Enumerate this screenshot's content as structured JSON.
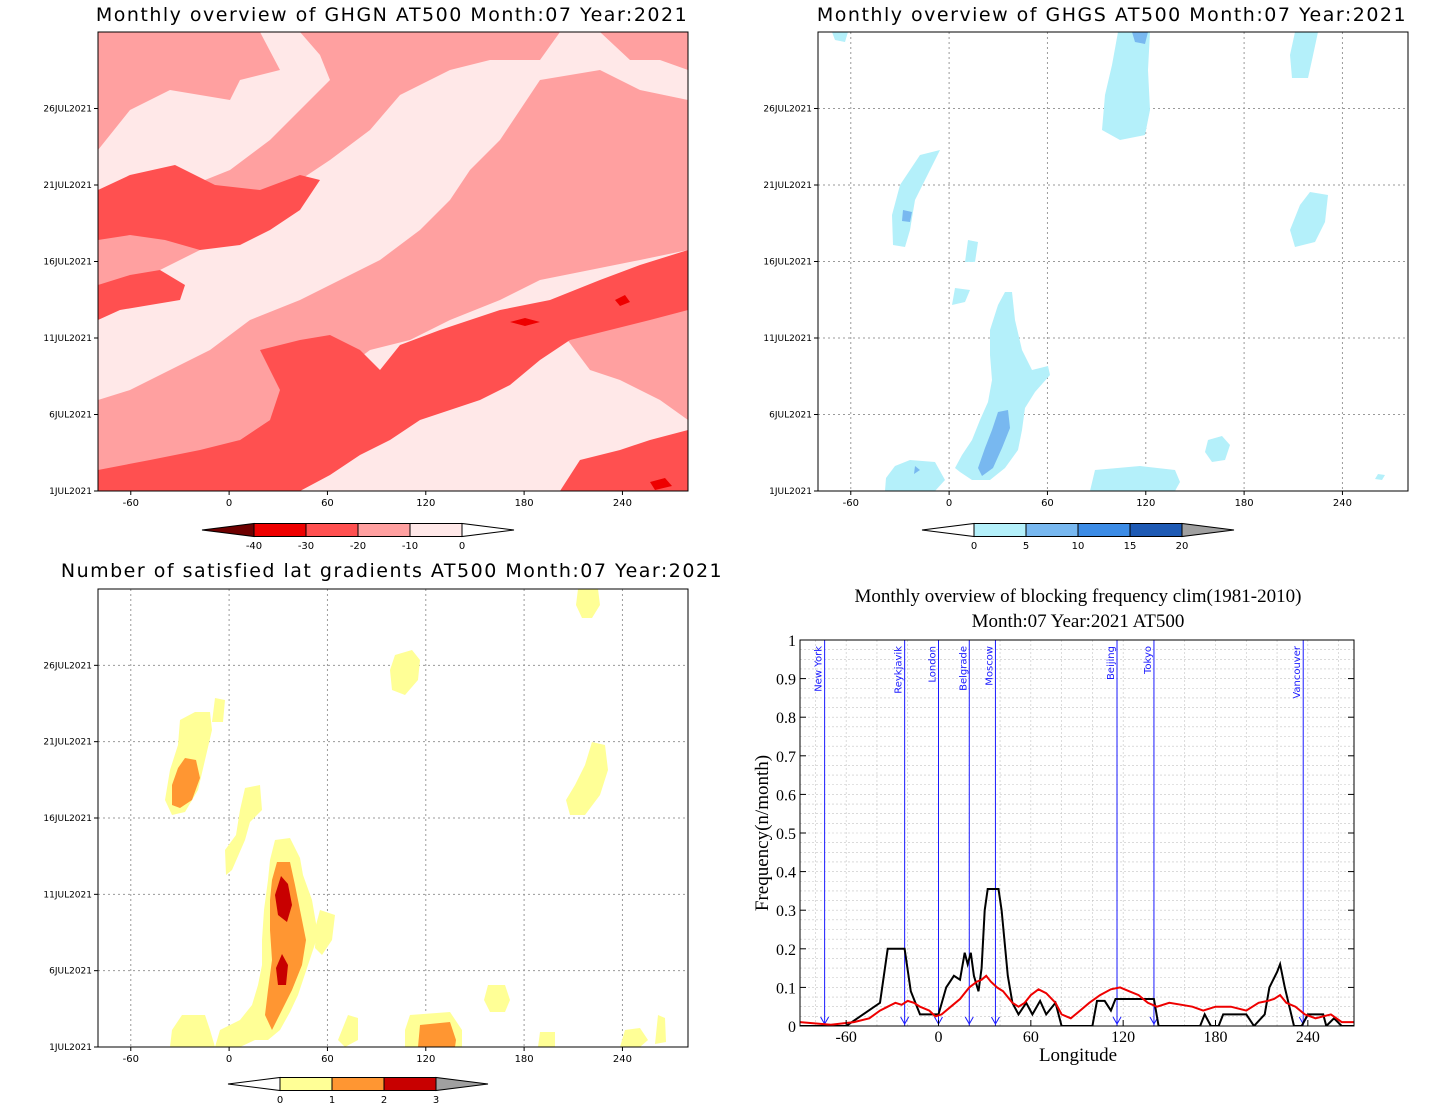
{
  "chart_data": [
    {
      "type": "heatmap",
      "id": "ghgn",
      "title": "Monthly overview of GHGN AT500 Month:07 Year:2021",
      "x_ticks": [
        "-60",
        "0",
        "60",
        "120",
        "180",
        "240"
      ],
      "y_ticks": [
        "1JUL2021",
        "6JUL2021",
        "11JUL2021",
        "16JUL2021",
        "21JUL2021",
        "26JUL2021"
      ],
      "colorbar": {
        "labels": [
          "-40",
          "-30",
          "-20",
          "-10",
          "0"
        ],
        "colors": [
          "#6e0000",
          "#ee0000",
          "#ff5050",
          "#ffa0a0",
          "#ffe8e8"
        ]
      }
    },
    {
      "type": "heatmap",
      "id": "ghgs",
      "title": "Monthly overview of GHGS AT500 Month:07 Year:2021",
      "x_ticks": [
        "-60",
        "0",
        "60",
        "120",
        "180",
        "240"
      ],
      "y_ticks": [
        "1JUL2021",
        "6JUL2021",
        "11JUL2021",
        "16JUL2021",
        "21JUL2021",
        "26JUL2021"
      ],
      "colorbar": {
        "labels": [
          "0",
          "5",
          "10",
          "15",
          "20"
        ],
        "colors": [
          "#b4f0fa",
          "#78b8f0",
          "#3c8ce6",
          "#1e5ab4",
          "#a0a0a0"
        ]
      }
    },
    {
      "type": "heatmap",
      "id": "gradients",
      "title": "Number of satisfied lat gradients AT500 Month:07 Year:2021",
      "x_ticks": [
        "-60",
        "0",
        "60",
        "120",
        "180",
        "240"
      ],
      "y_ticks": [
        "1JUL2021",
        "6JUL2021",
        "11JUL2021",
        "16JUL2021",
        "21JUL2021",
        "26JUL2021"
      ],
      "colorbar": {
        "labels": [
          "0",
          "1",
          "2",
          "3"
        ],
        "colors": [
          "#ffff96",
          "#ff9632",
          "#c80000",
          "#a0a0a0"
        ]
      }
    },
    {
      "type": "line",
      "id": "blocking",
      "title": "Monthly overview of blocking frequency clim(1981-2010)",
      "subtitle": "Month:07 Year:2021  AT500",
      "xlabel": "Longitude",
      "ylabel": "Frequency(n/month)",
      "xlim": [
        -90,
        270
      ],
      "ylim": [
        0,
        1
      ],
      "x_ticks": [
        "-60",
        "0",
        "60",
        "120",
        "180",
        "240"
      ],
      "y_ticks": [
        "0",
        "0.1",
        "0.2",
        "0.3",
        "0.4",
        "0.5",
        "0.6",
        "0.7",
        "0.8",
        "0.9",
        "1"
      ],
      "cities": [
        {
          "name": "New York",
          "lon": -74
        },
        {
          "name": "Reykjavik",
          "lon": -22
        },
        {
          "name": "London",
          "lon": 0
        },
        {
          "name": "Belgrade",
          "lon": 20
        },
        {
          "name": "Moscow",
          "lon": 37
        },
        {
          "name": "Beijing",
          "lon": 116
        },
        {
          "name": "Tokyo",
          "lon": 140
        },
        {
          "name": "Vancouver",
          "lon": 237
        }
      ],
      "series": [
        {
          "color": "#000000",
          "points": [
            [
              -90,
              0
            ],
            [
              -60,
              0
            ],
            [
              -38,
              0.06
            ],
            [
              -33,
              0.2
            ],
            [
              -22,
              0.2
            ],
            [
              -18,
              0.09
            ],
            [
              -12,
              0.03
            ],
            [
              -6,
              0.03
            ],
            [
              0,
              0.03
            ],
            [
              5,
              0.1
            ],
            [
              10,
              0.13
            ],
            [
              14,
              0.12
            ],
            [
              17,
              0.19
            ],
            [
              19,
              0.16
            ],
            [
              21,
              0.19
            ],
            [
              23,
              0.13
            ],
            [
              26,
              0.09
            ],
            [
              28,
              0.15
            ],
            [
              30,
              0.3
            ],
            [
              32,
              0.355
            ],
            [
              39,
              0.355
            ],
            [
              41,
              0.3
            ],
            [
              45,
              0.13
            ],
            [
              48,
              0.06
            ],
            [
              52,
              0.03
            ],
            [
              57,
              0.06
            ],
            [
              61,
              0.03
            ],
            [
              66,
              0.065
            ],
            [
              70,
              0.03
            ],
            [
              76,
              0.06
            ],
            [
              80,
              0
            ],
            [
              100,
              0
            ],
            [
              103,
              0.065
            ],
            [
              108,
              0.065
            ],
            [
              112,
              0.04
            ],
            [
              115,
              0.07
            ],
            [
              140,
              0.07
            ],
            [
              143,
              0
            ],
            [
              170,
              0
            ],
            [
              173,
              0.03
            ],
            [
              177,
              0
            ],
            [
              182,
              0
            ],
            [
              185,
              0.03
            ],
            [
              200,
              0.03
            ],
            [
              205,
              0
            ],
            [
              212,
              0.03
            ],
            [
              215,
              0.1
            ],
            [
              220,
              0.14
            ],
            [
              222,
              0.16
            ],
            [
              225,
              0.1
            ],
            [
              228,
              0.05
            ],
            [
              231,
              0
            ],
            [
              236,
              0
            ],
            [
              240,
              0.03
            ],
            [
              250,
              0.03
            ],
            [
              252,
              0
            ],
            [
              257,
              0.02
            ],
            [
              262,
              0
            ],
            [
              270,
              0
            ]
          ]
        },
        {
          "color": "#ee0000",
          "points": [
            [
              -90,
              0.01
            ],
            [
              -70,
              0.003
            ],
            [
              -55,
              0.01
            ],
            [
              -45,
              0.02
            ],
            [
              -38,
              0.04
            ],
            [
              -33,
              0.05
            ],
            [
              -28,
              0.06
            ],
            [
              -24,
              0.055
            ],
            [
              -20,
              0.065
            ],
            [
              -16,
              0.06
            ],
            [
              -12,
              0.05
            ],
            [
              -6,
              0.04
            ],
            [
              -2,
              0.025
            ],
            [
              2,
              0.03
            ],
            [
              8,
              0.05
            ],
            [
              14,
              0.07
            ],
            [
              20,
              0.1
            ],
            [
              25,
              0.115
            ],
            [
              28,
              0.12
            ],
            [
              31,
              0.13
            ],
            [
              34,
              0.115
            ],
            [
              38,
              0.1
            ],
            [
              42,
              0.09
            ],
            [
              48,
              0.06
            ],
            [
              52,
              0.05
            ],
            [
              56,
              0.06
            ],
            [
              60,
              0.08
            ],
            [
              65,
              0.095
            ],
            [
              70,
              0.085
            ],
            [
              76,
              0.06
            ],
            [
              80,
              0.03
            ],
            [
              86,
              0.02
            ],
            [
              92,
              0.04
            ],
            [
              98,
              0.06
            ],
            [
              105,
              0.08
            ],
            [
              112,
              0.095
            ],
            [
              118,
              0.1
            ],
            [
              124,
              0.09
            ],
            [
              130,
              0.08
            ],
            [
              136,
              0.06
            ],
            [
              142,
              0.05
            ],
            [
              150,
              0.06
            ],
            [
              158,
              0.055
            ],
            [
              165,
              0.05
            ],
            [
              172,
              0.04
            ],
            [
              180,
              0.05
            ],
            [
              190,
              0.05
            ],
            [
              200,
              0.04
            ],
            [
              208,
              0.06
            ],
            [
              214,
              0.065
            ],
            [
              218,
              0.07
            ],
            [
              222,
              0.08
            ],
            [
              226,
              0.06
            ],
            [
              232,
              0.05
            ],
            [
              238,
              0.03
            ],
            [
              245,
              0.02
            ],
            [
              255,
              0.03
            ],
            [
              262,
              0.01
            ],
            [
              270,
              0.01
            ]
          ]
        }
      ]
    }
  ]
}
